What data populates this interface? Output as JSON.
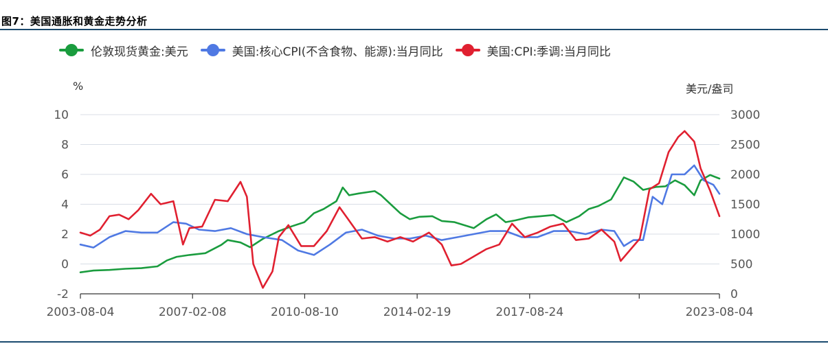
{
  "figure_title": "图7：美国通胀和黄金走势分析",
  "colors": {
    "gold": "#1a9c3e",
    "core_cpi": "#4f79e3",
    "cpi": "#e02030",
    "grid": "#d8dde6",
    "rule": "#1a4a6e"
  },
  "legend": [
    {
      "label": "伦敦现货黄金:美元",
      "color": "#1a9c3e"
    },
    {
      "label": "美国:核心CPI(不含食物、能源):当月同比",
      "color": "#4f79e3"
    },
    {
      "label": "美国:CPI:季调:当月同比",
      "color": "#e02030"
    }
  ],
  "chart_data": {
    "type": "line",
    "left_unit": "%",
    "right_unit": "美元/盎司",
    "left_axis": {
      "min": -2,
      "max": 10,
      "ticks": [
        "-2",
        "0",
        "2",
        "4",
        "6",
        "8",
        "10"
      ]
    },
    "right_axis": {
      "min": 0,
      "max": 3000,
      "ticks": [
        "0",
        "500",
        "1000",
        "1500",
        "2000",
        "2500",
        "3000"
      ]
    },
    "x_axis": {
      "start": 2003.59,
      "end": 2023.59,
      "tick_labels": [
        {
          "label": "2003-08-04",
          "x": 2003.59
        },
        {
          "label": "2007-02-08",
          "x": 2007.1
        },
        {
          "label": "2010-08-10",
          "x": 2010.61
        },
        {
          "label": "2014-02-19",
          "x": 2014.13
        },
        {
          "label": "2017-08-24",
          "x": 2017.65
        },
        {
          "label": "",
          "x": 2021.08
        },
        {
          "label": "2023-08-04",
          "x": 2023.59
        }
      ]
    },
    "grid": true,
    "series": [
      {
        "name": "伦敦现货黄金:美元",
        "axis": "right",
        "x": [
          2003.59,
          2004.0,
          2004.5,
          2005.0,
          2005.5,
          2006.0,
          2006.3,
          2006.6,
          2007.0,
          2007.5,
          2008.0,
          2008.2,
          2008.6,
          2008.9,
          2009.3,
          2009.8,
          2010.2,
          2010.6,
          2010.9,
          2011.2,
          2011.6,
          2011.8,
          2012.0,
          2012.3,
          2012.8,
          2013.0,
          2013.3,
          2013.6,
          2013.9,
          2014.2,
          2014.6,
          2014.9,
          2015.3,
          2015.9,
          2016.3,
          2016.6,
          2016.9,
          2017.2,
          2017.6,
          2018.0,
          2018.4,
          2018.8,
          2019.2,
          2019.5,
          2019.8,
          2020.2,
          2020.6,
          2020.9,
          2021.2,
          2021.6,
          2021.9,
          2022.2,
          2022.5,
          2022.8,
          2023.0,
          2023.3,
          2023.59
        ],
        "y": [
          360,
          390,
          400,
          420,
          430,
          460,
          560,
          620,
          650,
          680,
          820,
          900,
          860,
          780,
          920,
          1050,
          1130,
          1200,
          1350,
          1420,
          1550,
          1780,
          1650,
          1680,
          1720,
          1650,
          1500,
          1350,
          1250,
          1290,
          1300,
          1220,
          1200,
          1100,
          1250,
          1330,
          1200,
          1230,
          1280,
          1300,
          1320,
          1200,
          1300,
          1420,
          1470,
          1580,
          1950,
          1880,
          1740,
          1790,
          1800,
          1900,
          1820,
          1650,
          1900,
          1990,
          1930
        ]
      },
      {
        "name": "美国:核心CPI(不含食物、能源):当月同比",
        "axis": "left",
        "x": [
          2003.59,
          2004.0,
          2004.5,
          2005.0,
          2005.5,
          2006.0,
          2006.5,
          2006.9,
          2007.3,
          2007.8,
          2008.3,
          2008.8,
          2009.3,
          2009.9,
          2010.4,
          2010.9,
          2011.4,
          2011.9,
          2012.4,
          2012.9,
          2013.4,
          2013.9,
          2014.4,
          2014.9,
          2015.4,
          2015.9,
          2016.4,
          2016.9,
          2017.4,
          2017.9,
          2018.4,
          2018.9,
          2019.4,
          2019.9,
          2020.3,
          2020.6,
          2020.9,
          2021.2,
          2021.5,
          2021.8,
          2022.1,
          2022.5,
          2022.8,
          2023.1,
          2023.4,
          2023.59
        ],
        "y": [
          1.3,
          1.1,
          1.8,
          2.2,
          2.1,
          2.1,
          2.8,
          2.7,
          2.3,
          2.2,
          2.4,
          2.0,
          1.8,
          1.6,
          0.9,
          0.6,
          1.3,
          2.1,
          2.3,
          1.9,
          1.7,
          1.7,
          1.9,
          1.6,
          1.8,
          2.0,
          2.2,
          2.2,
          1.8,
          1.8,
          2.2,
          2.2,
          2.0,
          2.3,
          2.2,
          1.2,
          1.6,
          1.6,
          4.5,
          4.0,
          6.0,
          6.0,
          6.6,
          5.6,
          5.3,
          4.7
        ]
      },
      {
        "name": "美国:CPI:季调:当月同比",
        "axis": "left",
        "x": [
          2003.59,
          2003.9,
          2004.2,
          2004.5,
          2004.8,
          2005.1,
          2005.4,
          2005.8,
          2006.1,
          2006.5,
          2006.8,
          2007.0,
          2007.4,
          2007.8,
          2008.2,
          2008.6,
          2008.8,
          2009.0,
          2009.3,
          2009.6,
          2009.8,
          2010.1,
          2010.5,
          2010.9,
          2011.3,
          2011.7,
          2012.0,
          2012.4,
          2012.8,
          2013.2,
          2013.6,
          2014.0,
          2014.5,
          2014.9,
          2015.2,
          2015.5,
          2015.9,
          2016.3,
          2016.7,
          2017.1,
          2017.5,
          2017.9,
          2018.3,
          2018.7,
          2019.1,
          2019.5,
          2019.9,
          2020.3,
          2020.5,
          2020.9,
          2021.1,
          2021.4,
          2021.7,
          2022.0,
          2022.3,
          2022.5,
          2022.8,
          2023.0,
          2023.3,
          2023.59
        ],
        "y": [
          2.1,
          1.9,
          2.3,
          3.2,
          3.3,
          3.0,
          3.6,
          4.7,
          4.0,
          4.2,
          1.3,
          2.4,
          2.5,
          4.3,
          4.2,
          5.5,
          4.5,
          0.0,
          -1.6,
          -0.5,
          1.8,
          2.6,
          1.2,
          1.2,
          2.2,
          3.8,
          2.9,
          1.7,
          1.8,
          1.5,
          1.8,
          1.5,
          2.1,
          1.3,
          -0.1,
          0.0,
          0.5,
          1.0,
          1.3,
          2.7,
          1.8,
          2.1,
          2.5,
          2.7,
          1.6,
          1.7,
          2.3,
          1.5,
          0.2,
          1.2,
          1.7,
          5.0,
          5.4,
          7.5,
          8.5,
          8.9,
          8.2,
          6.4,
          4.9,
          3.2
        ]
      }
    ]
  }
}
